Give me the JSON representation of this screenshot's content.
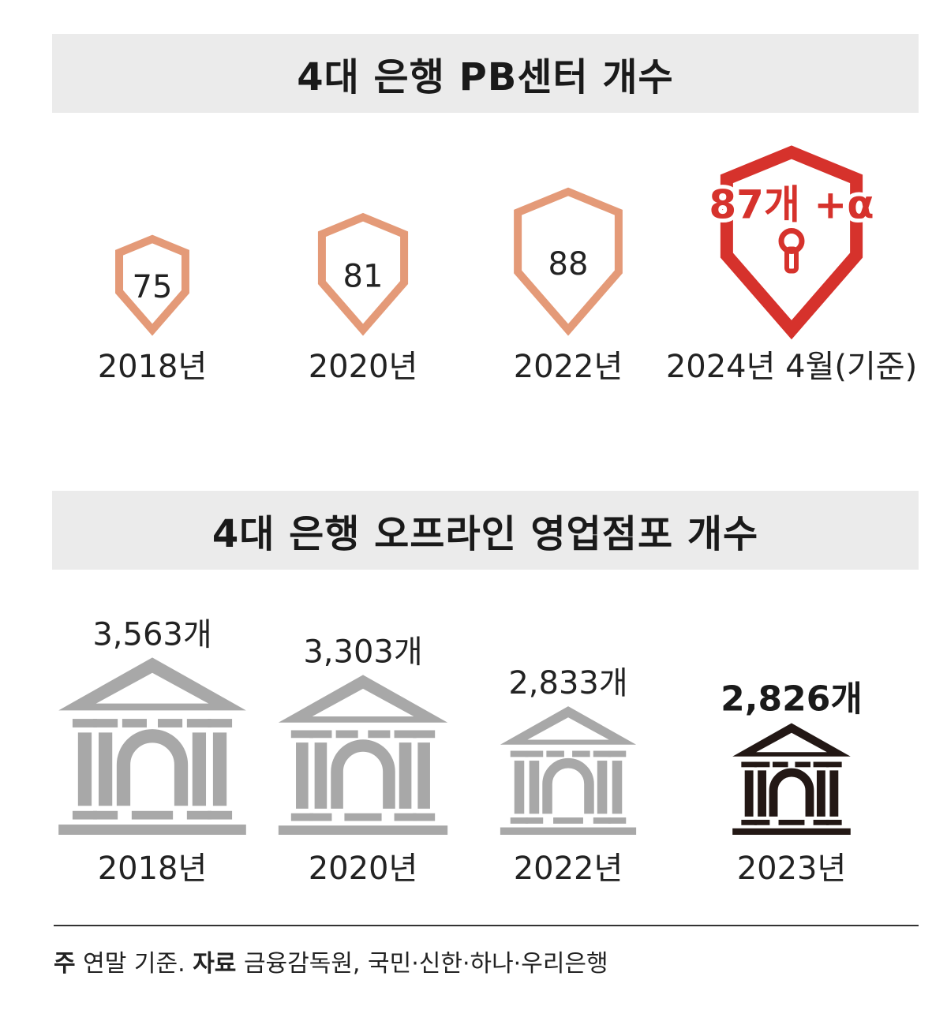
{
  "chart_data": [
    {
      "type": "bar",
      "title": "4대 은행 PB센터 개수",
      "categories": [
        "2018년",
        "2020년",
        "2022년",
        "2024년 4월(기준)"
      ],
      "values": [
        75,
        81,
        88,
        87
      ],
      "value_labels": [
        "75",
        "81",
        "88",
        "87개 +α"
      ],
      "highlight_index": 3,
      "colors": {
        "normal": "#e49a78",
        "highlight": "#d6322c"
      },
      "mark_icon": "shield-icon"
    },
    {
      "type": "bar",
      "title": "4대 은행 오프라인 영업점포 개수",
      "categories": [
        "2018년",
        "2020년",
        "2022년",
        "2023년"
      ],
      "values": [
        3563,
        3303,
        2833,
        2826
      ],
      "value_labels": [
        "3,563개",
        "3,303개",
        "2,833개",
        "2,826개"
      ],
      "highlight_index": 3,
      "colors": {
        "normal": "#a8a8a8",
        "highlight": "#231815"
      },
      "mark_icon": "bank-building-icon"
    }
  ],
  "footer": {
    "note_label": "주",
    "note_text": "연말 기준.",
    "source_label": "자료",
    "source_text": "금융감독원, 국민·신한·하나·우리은행"
  }
}
